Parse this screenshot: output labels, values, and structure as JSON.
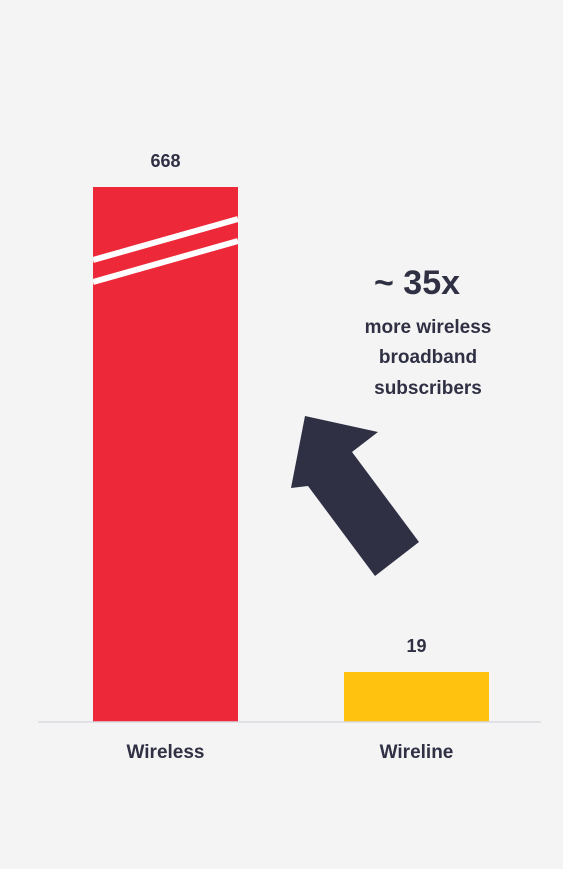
{
  "chart_data": {
    "type": "bar",
    "categories": [
      "Wireless",
      "Wireline"
    ],
    "values": [
      668,
      19
    ],
    "data_labels": [
      "668",
      "19"
    ],
    "axis_break": true,
    "grid": false,
    "legend": "none",
    "colors": [
      "#ed2939",
      "#ffc20e"
    ],
    "annotation": {
      "multiplier": "~ 35x",
      "lines": [
        "more wireless",
        "broadband",
        "subscribers"
      ],
      "arrow_color": "#2f3044"
    }
  },
  "colors": {
    "background": "#f4f4f4",
    "baseline": "#d9d9e0",
    "text": "#2f3044",
    "break_gap": "#ffffff"
  }
}
